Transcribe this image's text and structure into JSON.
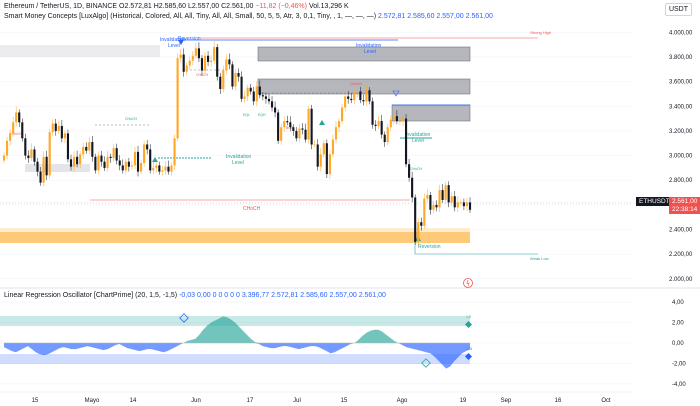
{
  "header": {
    "symbol": "Ethereum / TetherUS, 1D, BINANCE",
    "ohlc_open": "O2.572,81",
    "ohlc_high": "H2.585,60",
    "ohlc_low": "L2.557,00",
    "ohlc_close": "C2.561,00",
    "change": "−11,82 (−0,46%)",
    "volume": "Vol.13,296 K",
    "currency": "USDT"
  },
  "smc_legend": {
    "name": "Smart Money Concepts [LuxAlgo] (Historical, Colored, All, All, Tiny, All, All, Small, 50, 5, 5, Atr, 3, 0,1, Tiny, , 1, —, —, —)",
    "values": [
      "2.572,81",
      "2.585,60",
      "2.557,00",
      "2.561,00"
    ]
  },
  "osc_legend": {
    "name": "Linear Regression Oscillator [ChartPrime] (20, 1,5, -1,5)",
    "values": [
      "-0,03",
      "0,00",
      "0",
      "0",
      "0",
      "0",
      "0",
      "3.396,77",
      "2.572,81",
      "2.585,60",
      "2.557,00",
      "2.561,00"
    ]
  },
  "price_tag": {
    "symbol": "ETHUSDT",
    "price": "2.561,00",
    "countdown": "22:38:14"
  },
  "annotations": {
    "strong_high": "Strong High",
    "weak_low": "Weak Low",
    "invalidation_level": "Invalidation\nLevel",
    "reversion": "Reversion",
    "choch": "CHoCH",
    "bos": "BOS",
    "eql": "EQL",
    "eqh": "EQH"
  },
  "colors": {
    "up": "#26a69a",
    "down": "#ef5350",
    "candle_up": "#ffa726",
    "candle_down": "#131722",
    "ob_gray": "#787b86",
    "ob_orange": "#ffb74d",
    "osc_teal": "#26a69a",
    "osc_blue": "#2962ff"
  },
  "chart_data": [
    {
      "type": "candlestick",
      "y_axis_labels": [
        "4.000,00",
        "3.800,00",
        "3.600,00",
        "3.400,00",
        "3.200,00",
        "3.000,00",
        "2.800,00",
        "2.600,00",
        "2.400,00",
        "2.200,00",
        "2.000,00"
      ],
      "x_axis_labels": [
        "15",
        "Mayo",
        "14",
        "Jun",
        "17",
        "Jul",
        "15",
        "Ago",
        "19",
        "Sep",
        "16",
        "Oct"
      ],
      "ylim": [
        1950,
        4100
      ],
      "closes": [
        3000,
        3120,
        3180,
        3270,
        3350,
        3270,
        3140,
        3000,
        2980,
        3050,
        2950,
        2870,
        2780,
        2990,
        2840,
        3190,
        3260,
        3200,
        3240,
        3140,
        3180,
        2970,
        2910,
        2990,
        2930,
        3010,
        3070,
        3040,
        3110,
        2990,
        2880,
        3000,
        2950,
        2900,
        2990,
        2980,
        3060,
        2960,
        2920,
        2880,
        2950,
        2910,
        2920,
        3030,
        2870,
        2940,
        3090,
        3050,
        2880,
        2900,
        2920,
        2870,
        2880,
        2910,
        2870,
        2920,
        3140,
        3790,
        3820,
        3680,
        3730,
        3770,
        3810,
        3870,
        3790,
        3690,
        3810,
        3760,
        3770,
        3880,
        3640,
        3540,
        3690,
        3780,
        3740,
        3560,
        3670,
        3640,
        3460,
        3480,
        3550,
        3520,
        3440,
        3560,
        3490,
        3480,
        3460,
        3440,
        3390,
        3350,
        3120,
        3230,
        3280,
        3270,
        3230,
        3200,
        3140,
        3220,
        3210,
        3130,
        3380,
        3090,
        3090,
        2910,
        3010,
        3100,
        2850,
        3010,
        3130,
        3230,
        3280,
        3390,
        3480,
        3460,
        3450,
        3510,
        3520,
        3450,
        3440,
        3530,
        3440,
        3250,
        3240,
        3280,
        3170,
        3110,
        3230,
        3290,
        3320,
        3280,
        3280,
        3300,
        2930,
        2820,
        2660,
        2300,
        2460,
        2430,
        2650,
        2680,
        2560,
        2600,
        2580,
        2720,
        2640,
        2760,
        2620,
        2670,
        2580,
        2620,
        2620,
        2590,
        2620,
        2560
      ]
    },
    {
      "type": "area",
      "title": "Linear Regression Oscillator",
      "y_axis_labels": [
        "4,00",
        "2,00",
        "0,00",
        "-2,00",
        "-4,00"
      ],
      "ylim": [
        -4.4,
        4.4
      ],
      "threshold_labels": [
        "1,5",
        "-1,5"
      ],
      "values": [
        -0.4,
        -0.6,
        -0.8,
        -0.9,
        -0.7,
        -0.5,
        -0.3,
        -0.6,
        -0.9,
        -1.1,
        -1.2,
        -1.1,
        -0.9,
        -0.7,
        -0.5,
        -0.4,
        -0.5,
        -0.6,
        -0.6,
        -0.5,
        -0.4,
        -0.3,
        -0.4,
        -0.5,
        -0.6,
        -0.7,
        -0.6,
        -0.4,
        -0.2,
        -0.1,
        -0.3,
        -0.5,
        -0.6,
        -0.7,
        -0.8,
        -0.7,
        -0.6,
        -0.6,
        -0.7,
        -0.8,
        -0.9,
        -0.8,
        -0.6,
        -0.4,
        -0.2,
        0.0,
        0.2,
        0.3,
        0.4,
        0.8,
        1.3,
        1.7,
        2.0,
        2.2,
        2.4,
        2.6,
        2.5,
        2.3,
        2.0,
        1.6,
        1.2,
        0.8,
        0.4,
        0.1,
        -0.1,
        -0.3,
        -0.4,
        -0.5,
        -0.5,
        -0.4,
        -0.3,
        -0.3,
        -0.4,
        -0.5,
        -0.6,
        -0.5,
        -0.4,
        -0.3,
        -0.3,
        -0.4,
        -0.6,
        -0.8,
        -1.0,
        -0.9,
        -0.7,
        -0.5,
        -0.3,
        -0.1,
        0.0,
        0.3,
        0.7,
        1.0,
        1.2,
        1.3,
        1.3,
        1.1,
        0.8,
        0.5,
        0.2,
        0.0,
        -0.2,
        -0.4,
        -0.5,
        -0.6,
        -0.7,
        -0.8,
        -0.9,
        -1.0,
        -1.3,
        -1.7,
        -2.1,
        -2.5,
        -2.3,
        -1.8,
        -1.4,
        -1.0,
        -0.8,
        -0.6
      ]
    }
  ]
}
